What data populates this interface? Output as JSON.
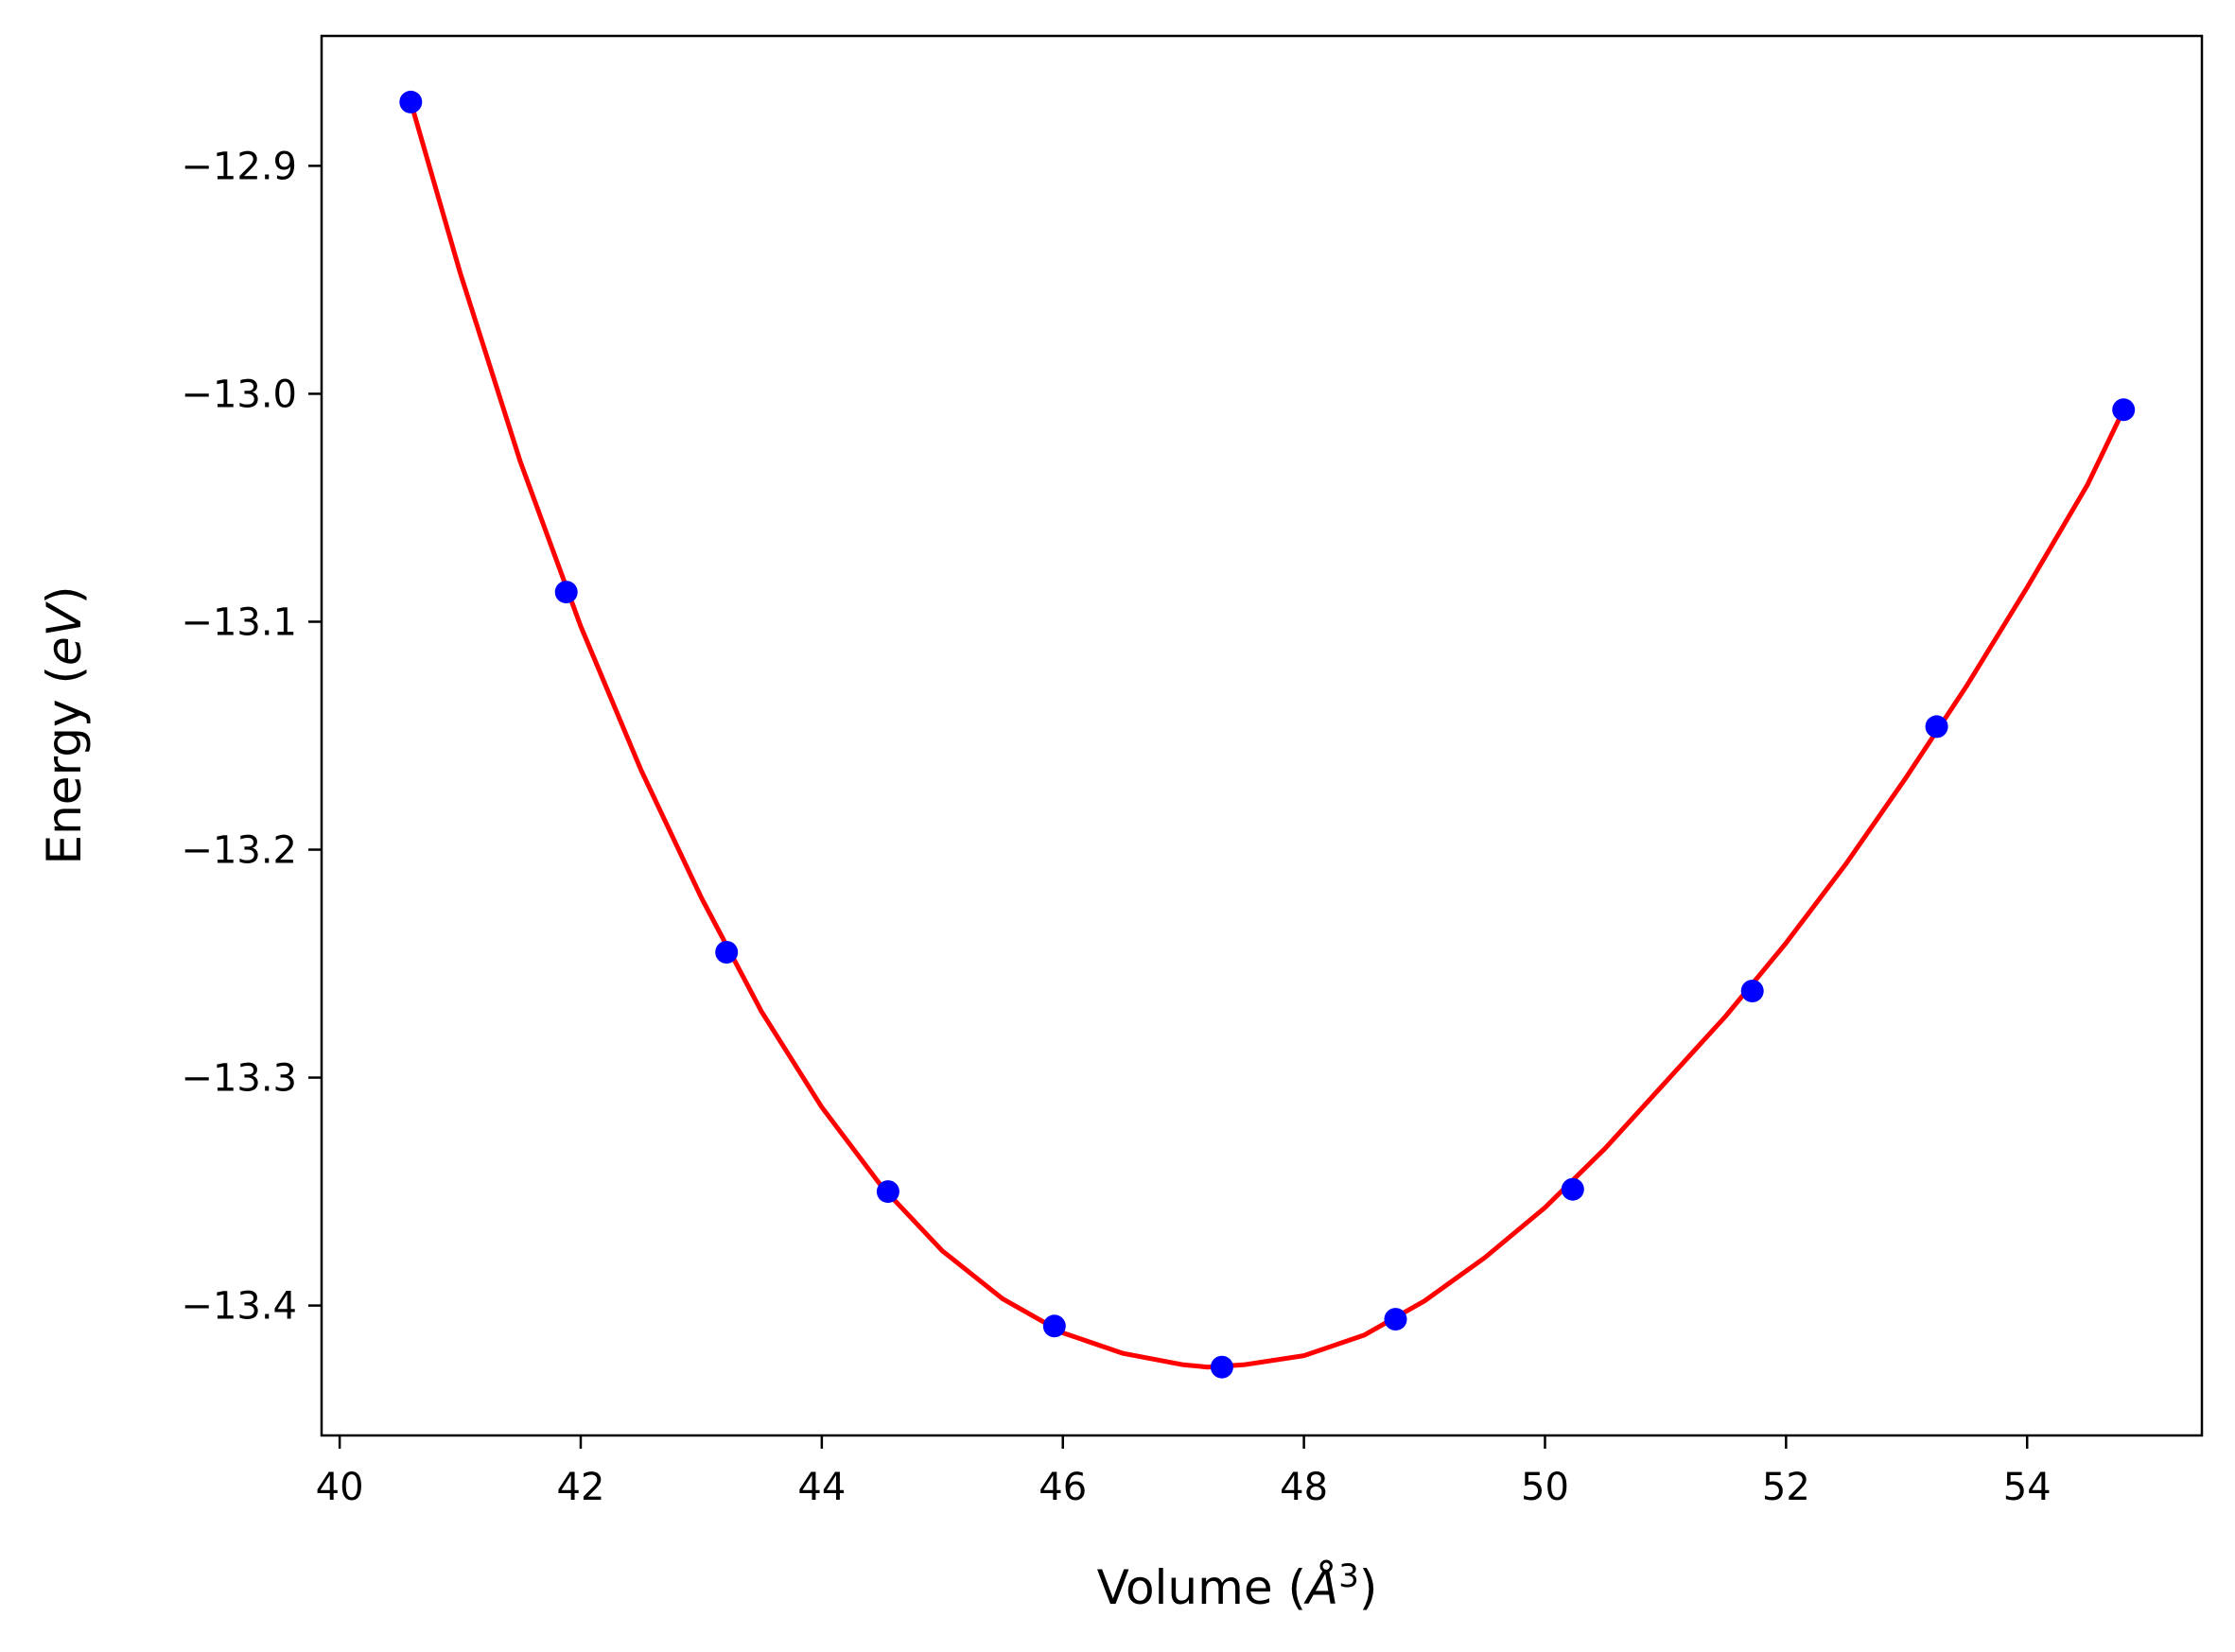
{
  "chart_data": {
    "type": "line",
    "xlabel_main": "Volume (",
    "xlabel_unit": "Å",
    "xlabel_exp": "3",
    "xlabel_close": ")",
    "ylabel_main": "Energy (",
    "ylabel_unit": "eV",
    "ylabel_close": ")",
    "xlim": [
      39.85,
      55.45
    ],
    "ylim": [
      -13.457,
      -12.843
    ],
    "xticks": [
      40,
      42,
      44,
      46,
      48,
      50,
      52,
      54
    ],
    "xtick_labels": [
      "40",
      "42",
      "44",
      "46",
      "48",
      "50",
      "52",
      "54"
    ],
    "yticks": [
      -12.9,
      -13.0,
      -13.1,
      -13.2,
      -13.3,
      -13.4
    ],
    "ytick_labels": [
      "−12.9",
      "−13.0",
      "−13.1",
      "−13.2",
      "−13.3",
      "−13.4"
    ],
    "grid": false,
    "series": [
      {
        "kind": "points",
        "color": "#0000ff",
        "x": [
          40.59,
          41.88,
          43.21,
          44.55,
          45.93,
          47.32,
          48.76,
          50.23,
          51.72,
          53.25,
          54.8
        ],
        "y": [
          -12.872,
          -13.087,
          -13.245,
          -13.35,
          -13.409,
          -13.427,
          -13.406,
          -13.349,
          -13.262,
          -13.146,
          -13.007
        ]
      },
      {
        "kind": "fit",
        "color": "#ff0000",
        "x": [
          40.59,
          41.0,
          41.5,
          42.0,
          42.5,
          43.0,
          43.5,
          44.0,
          44.5,
          45.0,
          45.5,
          46.0,
          46.5,
          47.0,
          47.2,
          47.5,
          48.0,
          48.5,
          49.0,
          49.5,
          50.0,
          50.5,
          51.0,
          51.5,
          52.0,
          52.5,
          53.0,
          53.5,
          54.0,
          54.5,
          54.8
        ],
        "y": [
          -12.872,
          -12.947,
          -13.03,
          -13.102,
          -13.165,
          -13.221,
          -13.271,
          -13.313,
          -13.348,
          -13.376,
          -13.397,
          -13.412,
          -13.421,
          -13.426,
          -13.427,
          -13.426,
          -13.422,
          -13.413,
          -13.398,
          -13.379,
          -13.357,
          -13.331,
          -13.302,
          -13.273,
          -13.241,
          -13.206,
          -13.168,
          -13.128,
          -13.085,
          -13.04,
          -13.007
        ]
      }
    ]
  }
}
